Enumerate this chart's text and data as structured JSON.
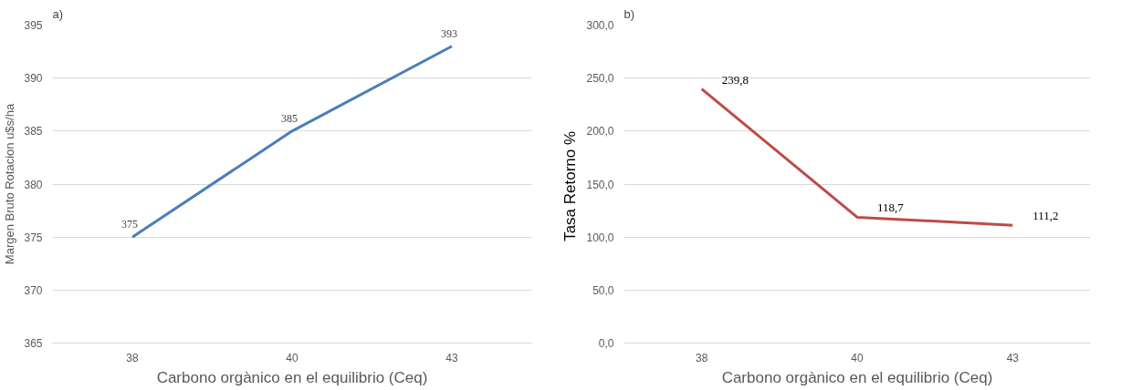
{
  "chart_data": [
    {
      "type": "line",
      "title": "a)",
      "xlabel": "Carbono orgànico en el equilibrio (Ceq)",
      "ylabel": "Margen Bruto Rotacion u$s/ha",
      "categories": [
        "38",
        "40",
        "43"
      ],
      "series": [
        {
          "color": "#4a7ebb",
          "values": [
            375,
            385,
            393
          ]
        }
      ],
      "ylim": [
        365,
        395
      ],
      "yticks": [
        365,
        370,
        375,
        380,
        385,
        390,
        395
      ],
      "grid": "y",
      "data_labels": true,
      "marker": "none",
      "line_style": "solid"
    },
    {
      "type": "line",
      "title": "b)",
      "xlabel": "Carbono orgànico en el equilibrio (Ceq)",
      "ylabel": "Tasa Retorno  %",
      "categories": [
        "38",
        "40",
        "43"
      ],
      "series": [
        {
          "color": "#be4b48",
          "values": [
            239.8,
            118.7,
            111.2
          ],
          "value_labels": [
            "239,8",
            "118,7",
            "111,2"
          ]
        }
      ],
      "ylim": [
        0,
        300
      ],
      "yticks": [
        {
          "value": 0,
          "label": "0,0"
        },
        {
          "value": 50,
          "label": "50,0"
        },
        {
          "value": 100,
          "label": "100,0"
        },
        {
          "value": 150,
          "label": "150,0"
        },
        {
          "value": 200,
          "label": "200,0"
        },
        {
          "value": 250,
          "label": "250,0"
        },
        {
          "value": 300,
          "label": "300,0"
        }
      ],
      "grid": "y",
      "marker": "none",
      "line_style": "solid"
    }
  ]
}
